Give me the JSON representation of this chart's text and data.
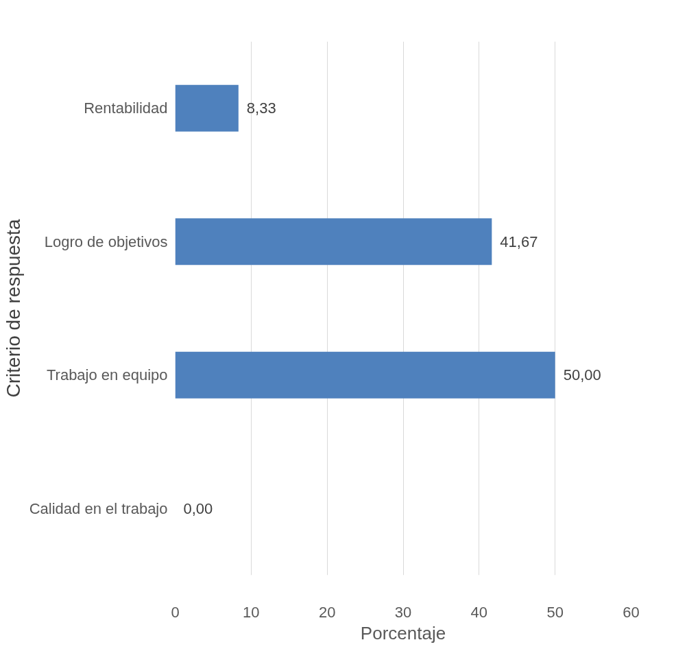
{
  "chart_data": {
    "type": "bar",
    "orientation": "horizontal",
    "xlabel": "Porcentaje",
    "ylabel": "Criterio de respuesta",
    "categories": [
      "Rentabilidad",
      "Logro de objetivos",
      "Trabajo en equipo",
      "Calidad en el trabajo"
    ],
    "values": [
      8.33,
      41.67,
      50.0,
      0.0
    ],
    "value_labels": [
      "8,33",
      "41,67",
      "50,00",
      "0,00"
    ],
    "color": "#4f81bd",
    "xlim": [
      0,
      60
    ],
    "xticks": [
      0,
      10,
      20,
      30,
      40,
      50,
      60
    ],
    "grid": "x"
  }
}
